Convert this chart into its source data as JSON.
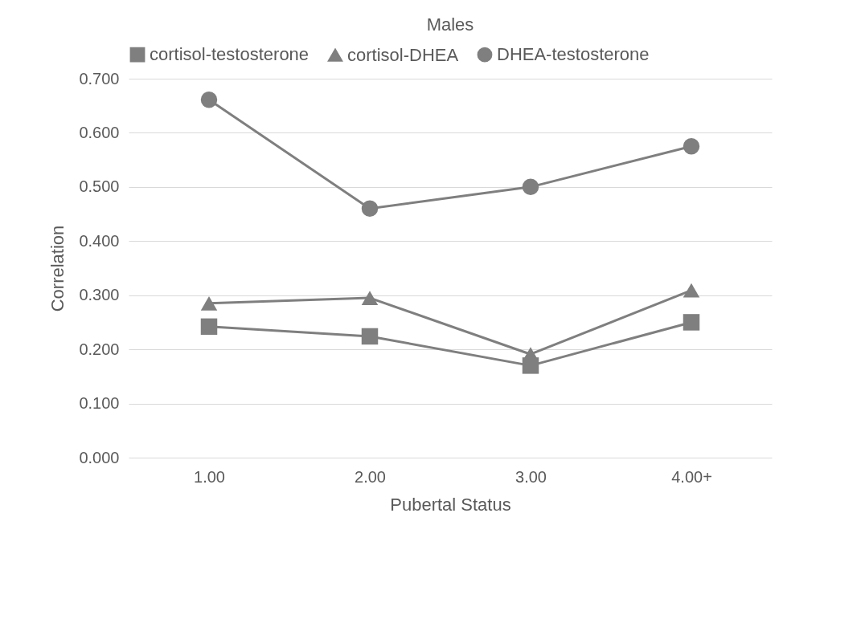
{
  "chart_data": {
    "type": "line",
    "title": "Males",
    "xlabel": "Pubertal Status",
    "ylabel": "Correlation",
    "categories": [
      "1.00",
      "2.00",
      "3.00",
      "4.00+"
    ],
    "series": [
      {
        "name": "cortisol-testosterone",
        "color": "#7f7f7f",
        "marker": "square",
        "values": [
          0.242,
          0.224,
          0.17,
          0.25
        ]
      },
      {
        "name": "cortisol-DHEA",
        "color": "#7f7f7f",
        "marker": "triangle",
        "values": [
          0.285,
          0.295,
          0.191,
          0.309
        ]
      },
      {
        "name": "DHEA-testosterone",
        "color": "#7f7f7f",
        "marker": "circle",
        "values": [
          0.661,
          0.46,
          0.5,
          0.575
        ]
      }
    ],
    "ylim": [
      0,
      0.7
    ],
    "yticks": [
      {
        "value": 0,
        "label": "0.000"
      },
      {
        "value": 0.1,
        "label": "0.100"
      },
      {
        "value": 0.2,
        "label": "0.200"
      },
      {
        "value": 0.3,
        "label": "0.300"
      },
      {
        "value": 0.4,
        "label": "0.400"
      },
      {
        "value": 0.5,
        "label": "0.500"
      },
      {
        "value": 0.6,
        "label": "0.600"
      },
      {
        "value": 0.7,
        "label": "0.700"
      }
    ],
    "grid": "y",
    "legend": "top",
    "line_style": "solid"
  }
}
